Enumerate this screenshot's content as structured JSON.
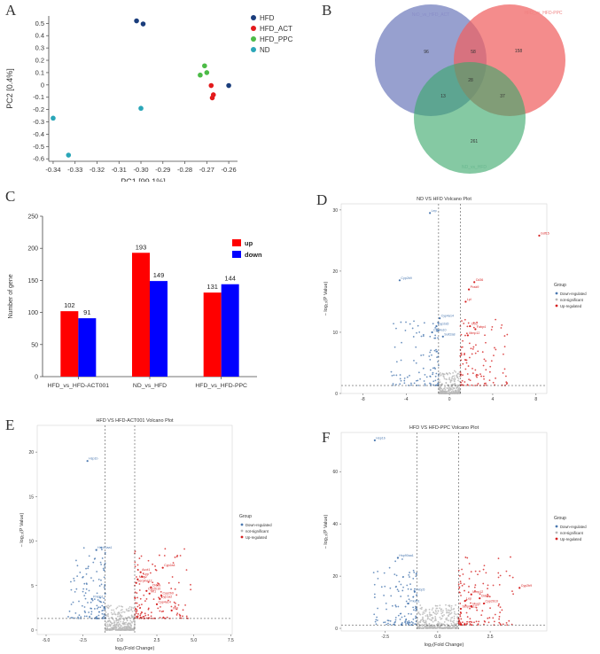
{
  "panels": {
    "A": "A",
    "B": "B",
    "C": "C",
    "D": "D",
    "E": "E",
    "F": "F"
  },
  "colors": {
    "hfd": "#1a3d7c",
    "act": "#e31a1c",
    "ppc": "#4cbb47",
    "nd": "#2aa6b8",
    "up": "#ff0000",
    "down": "#0000ff",
    "downreg": "#4a78b0",
    "nonsig": "#b8b8b8",
    "upreg": "#d62020"
  },
  "chart_data": [
    {
      "id": "A",
      "type": "scatter",
      "title": "",
      "xlabel": "PC1 [99.1%]",
      "ylabel": "PC2 [0.4%]",
      "xlim": [
        -0.342,
        -0.256
      ],
      "ylim": [
        -0.62,
        0.56
      ],
      "xticks": [
        -0.34,
        -0.33,
        -0.32,
        -0.31,
        -0.3,
        -0.29,
        -0.28,
        -0.27,
        -0.26
      ],
      "xtick_labels": [
        "-0.34",
        "-0.33",
        "-0.32",
        "-0.31",
        "-0.30",
        "-0.29",
        "-0.28",
        "-0.27",
        "-0.26"
      ],
      "yticks": [
        0.5,
        0.4,
        0.3,
        0.2,
        0.1,
        0,
        -0.1,
        -0.2,
        -0.3,
        -0.4,
        -0.5,
        -0.6
      ],
      "ytick_labels": [
        "0.5",
        "0.4",
        "0.3",
        "0.2",
        "0.1",
        "0",
        "-0.1",
        "-0.2",
        "-0.3",
        "-0.4",
        "-0.5",
        "-0.6"
      ],
      "legend": [
        "HFD",
        "HFD_ACT",
        "HFD_PPC",
        "ND"
      ],
      "series": [
        {
          "name": "HFD",
          "points": [
            [
              -0.302,
              0.52
            ],
            [
              -0.299,
              0.495
            ],
            [
              -0.26,
              -0.005
            ]
          ]
        },
        {
          "name": "HFD_ACT",
          "points": [
            [
              -0.268,
              -0.005
            ],
            [
              -0.267,
              -0.08
            ],
            [
              -0.2675,
              -0.105
            ]
          ]
        },
        {
          "name": "HFD_PPC",
          "points": [
            [
              -0.273,
              0.08
            ],
            [
              -0.271,
              0.155
            ],
            [
              -0.27,
              0.1
            ]
          ]
        },
        {
          "name": "ND",
          "points": [
            [
              -0.34,
              -0.27
            ],
            [
              -0.333,
              -0.57
            ],
            [
              -0.3,
              -0.19
            ]
          ]
        }
      ]
    },
    {
      "id": "B",
      "type": "venn",
      "sets": [
        "NrD_vs_HFD_ACT",
        "HFD_vs_HFD-PPC",
        "ND_vs_HFD"
      ],
      "regions": {
        "a_only": "96",
        "b_only": "158",
        "c_only": "261",
        "ab": "58",
        "ac": "13",
        "bc": "37",
        "abc": "28"
      }
    },
    {
      "id": "C",
      "type": "bar",
      "xlabel": "",
      "ylabel": "Number of gene",
      "ylim": [
        0,
        250
      ],
      "yticks": [
        0,
        50,
        100,
        150,
        200,
        250
      ],
      "ytick_labels": [
        "0",
        "50",
        "100",
        "150",
        "200",
        "250"
      ],
      "categories": [
        "HFD_vs_HFD-ACT001",
        "ND_vs_HFD",
        "HFD_vs_HFD-PPC"
      ],
      "series": [
        {
          "name": "up",
          "values": [
            102,
            193,
            131
          ],
          "labels": [
            "102",
            "193",
            "131"
          ]
        },
        {
          "name": "down",
          "values": [
            91,
            149,
            144
          ],
          "labels": [
            "91",
            "149",
            "144"
          ]
        }
      ],
      "legend": [
        "up",
        "down"
      ]
    },
    {
      "id": "D",
      "type": "scatter",
      "title": "ND VS HFD Volcano Plot",
      "xlabel": "log₂(Fold Change)",
      "ylabel": "− log₁₀(P Value)",
      "xlim": [
        -10,
        9
      ],
      "ylim": [
        0,
        31
      ],
      "xticks": [
        -8,
        -4,
        0,
        4,
        8
      ],
      "xtick_labels": [
        "-8",
        "-4",
        "0",
        "4",
        "8"
      ],
      "yticks": [
        0,
        10,
        20,
        30
      ],
      "ytick_labels": [
        "0",
        "10",
        "20",
        "30"
      ],
      "thresholds": {
        "x": [
          -1,
          1
        ],
        "y": 1.3
      },
      "legend_title": "Group",
      "legend": [
        "Down-regulated",
        "not-significant",
        "Up-regulated"
      ],
      "gene_labels": [
        {
          "text": "Lep",
          "x": -1.8,
          "y": 29.5,
          "group": "down"
        },
        {
          "text": "Cyp2b9",
          "x": -4.6,
          "y": 18.5,
          "group": "down"
        },
        {
          "text": "Cyp4a14",
          "x": -0.9,
          "y": 12.3,
          "group": "down"
        },
        {
          "text": "Cyp2a5",
          "x": -1.2,
          "y": 11.0,
          "group": "down"
        },
        {
          "text": "Cyp4a10",
          "x": -1.6,
          "y": 10.0,
          "group": "down"
        },
        {
          "text": "Sult2a8",
          "x": -0.6,
          "y": 9.3,
          "group": "down"
        },
        {
          "text": "Cd36",
          "x": 2.3,
          "y": 18.2,
          "group": "up"
        },
        {
          "text": "Pcsk9",
          "x": 1.8,
          "y": 17.0,
          "group": "up"
        },
        {
          "text": "Lpl",
          "x": 1.5,
          "y": 15.0,
          "group": "up"
        },
        {
          "text": "Ccl2",
          "x": 1.9,
          "y": 11.0,
          "group": "up"
        },
        {
          "text": "Fabp4",
          "x": 2.4,
          "y": 10.5,
          "group": "up"
        },
        {
          "text": "Mmp12",
          "x": 1.7,
          "y": 9.5,
          "group": "up"
        },
        {
          "text": "Gdf15",
          "x": 8.3,
          "y": 25.8,
          "group": "up"
        }
      ]
    },
    {
      "id": "E",
      "type": "scatter",
      "title": "HFD VS HFD-ACT001 Volcano Plot",
      "xlabel": "log₂(Fold Change)",
      "ylabel": "− log₁₀(P Value)",
      "xlim": [
        -5.6,
        7.6
      ],
      "ylim": [
        -0.5,
        23
      ],
      "xticks": [
        -5,
        -2.5,
        0,
        2.5,
        5,
        7.5
      ],
      "xtick_labels": [
        "-5.0",
        "-2.5",
        "0.0",
        "2.5",
        "5.0",
        "7.5"
      ],
      "yticks": [
        0,
        5,
        10,
        15,
        20
      ],
      "ytick_labels": [
        "0",
        "5",
        "10",
        "15",
        "20"
      ],
      "thresholds": {
        "x": [
          -1,
          1
        ],
        "y": 1.3
      },
      "legend_title": "Group",
      "legend": [
        "Down-regulated",
        "not-significant",
        "Up-regulated"
      ],
      "gene_labels": [
        {
          "text": "Hsp1b",
          "x": -2.2,
          "y": 19.0,
          "group": "down"
        },
        {
          "text": "Hsp90aa1",
          "x": -1.6,
          "y": 9.0,
          "group": "down"
        },
        {
          "text": "Prkab1",
          "x": -1.9,
          "y": 3.5,
          "group": "down"
        },
        {
          "text": "Cyp2a4",
          "x": 2.9,
          "y": 7.0,
          "group": "up"
        },
        {
          "text": "Acot1",
          "x": 1.4,
          "y": 6.5,
          "group": "up"
        },
        {
          "text": "Lep",
          "x": 1.5,
          "y": 6.0,
          "group": "up"
        },
        {
          "text": "Mug2",
          "x": 1.2,
          "y": 5.7,
          "group": "up"
        },
        {
          "text": "Serpina12",
          "x": 1.1,
          "y": 5.3,
          "group": "up"
        },
        {
          "text": "Cidea",
          "x": 2.1,
          "y": 4.8,
          "group": "up"
        },
        {
          "text": "Cyp2b10",
          "x": 1.8,
          "y": 4.4,
          "group": "up"
        },
        {
          "text": "Mt1",
          "x": 2.0,
          "y": 4.1,
          "group": "up"
        },
        {
          "text": "Cyp2b9",
          "x": 2.8,
          "y": 3.9,
          "group": "up"
        },
        {
          "text": "Cyp1a2",
          "x": 2.7,
          "y": 3.5,
          "group": "up"
        },
        {
          "text": "Cyp4a14",
          "x": 2.5,
          "y": 2.9,
          "group": "up"
        },
        {
          "text": "Ifit3",
          "x": 3.5,
          "y": 2.2,
          "group": "up"
        }
      ]
    },
    {
      "id": "F",
      "type": "scatter",
      "title": "HFD VS HFD-PPC Volcano Plot",
      "xlabel": "log₂(Fold Change)",
      "ylabel": "− log₁₀(P Value)",
      "xlim": [
        -4.6,
        5.2
      ],
      "ylim": [
        -1,
        75
      ],
      "xticks": [
        -2.5,
        0,
        2.5
      ],
      "xtick_labels": [
        "-2.5",
        "0.0",
        "2.5"
      ],
      "yticks": [
        0,
        20,
        40,
        60
      ],
      "ytick_labels": [
        "0",
        "20",
        "40",
        "60"
      ],
      "thresholds": {
        "x": [
          -1,
          1
        ],
        "y": 1.3
      },
      "legend_title": "Group",
      "legend": [
        "Down-regulated",
        "not-significant",
        "Up-regulated"
      ],
      "gene_labels": [
        {
          "text": "Hsp1b",
          "x": -3.0,
          "y": 72.0,
          "group": "down"
        },
        {
          "text": "Hsp90aa1",
          "x": -1.9,
          "y": 27.0,
          "group": "down"
        },
        {
          "text": "Fkbp5",
          "x": -1.1,
          "y": 14.0,
          "group": "down"
        },
        {
          "text": "Prkab1",
          "x": -1.4,
          "y": 9.5,
          "group": "down"
        },
        {
          "text": "Cyp2b9",
          "x": 3.9,
          "y": 15.5,
          "group": "up"
        },
        {
          "text": "Mmp12",
          "x": 1.6,
          "y": 13.0,
          "group": "up"
        },
        {
          "text": "Cidea",
          "x": 2.0,
          "y": 11.5,
          "group": "up"
        },
        {
          "text": "Lep",
          "x": 1.3,
          "y": 10.5,
          "group": "up"
        },
        {
          "text": "Cyp2b10",
          "x": 2.2,
          "y": 9.5,
          "group": "up"
        },
        {
          "text": "Mug2",
          "x": 1.6,
          "y": 8.5,
          "group": "up"
        },
        {
          "text": "Serpina12",
          "x": 1.1,
          "y": 7.5,
          "group": "up"
        }
      ]
    }
  ]
}
